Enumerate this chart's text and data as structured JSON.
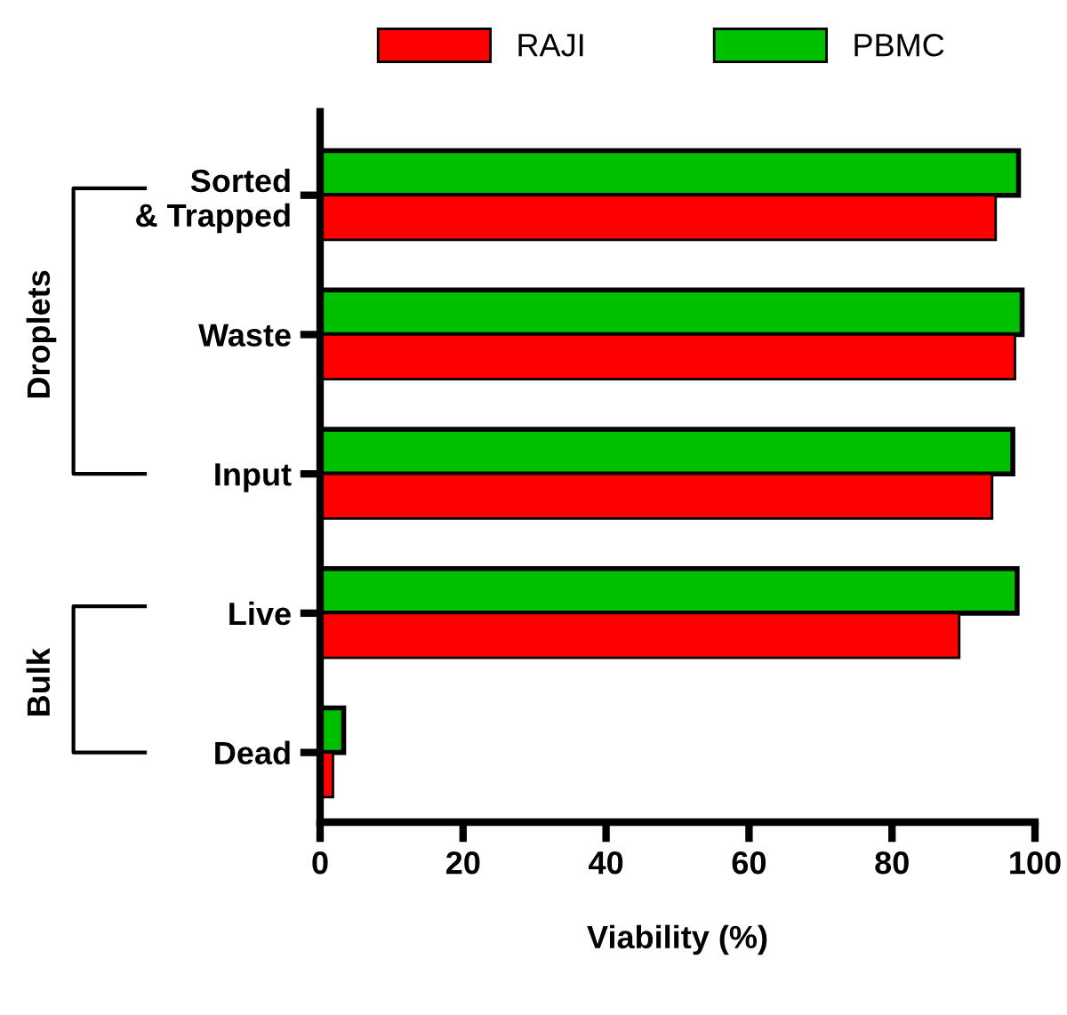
{
  "chart_data": {
    "type": "bar",
    "orientation": "horizontal",
    "xlabel": "Viability (%)",
    "categories": [
      "Sorted\n& Trapped",
      "Waste",
      "Input",
      "Live",
      "Dead"
    ],
    "series": [
      {
        "name": "PBMC",
        "color": "#00c000",
        "values": [
          97.7,
          98.2,
          96.9,
          97.5,
          3.3
        ]
      },
      {
        "name": "RAJI",
        "color": "#ff0000",
        "values": [
          94.5,
          97.2,
          94.0,
          89.4,
          1.8
        ]
      }
    ],
    "xlim": [
      0,
      100
    ],
    "xticks": [
      0,
      20,
      40,
      60,
      80,
      100
    ],
    "grid": false,
    "legend": "top",
    "annotations": [
      "Droplets",
      "Bulk"
    ]
  }
}
